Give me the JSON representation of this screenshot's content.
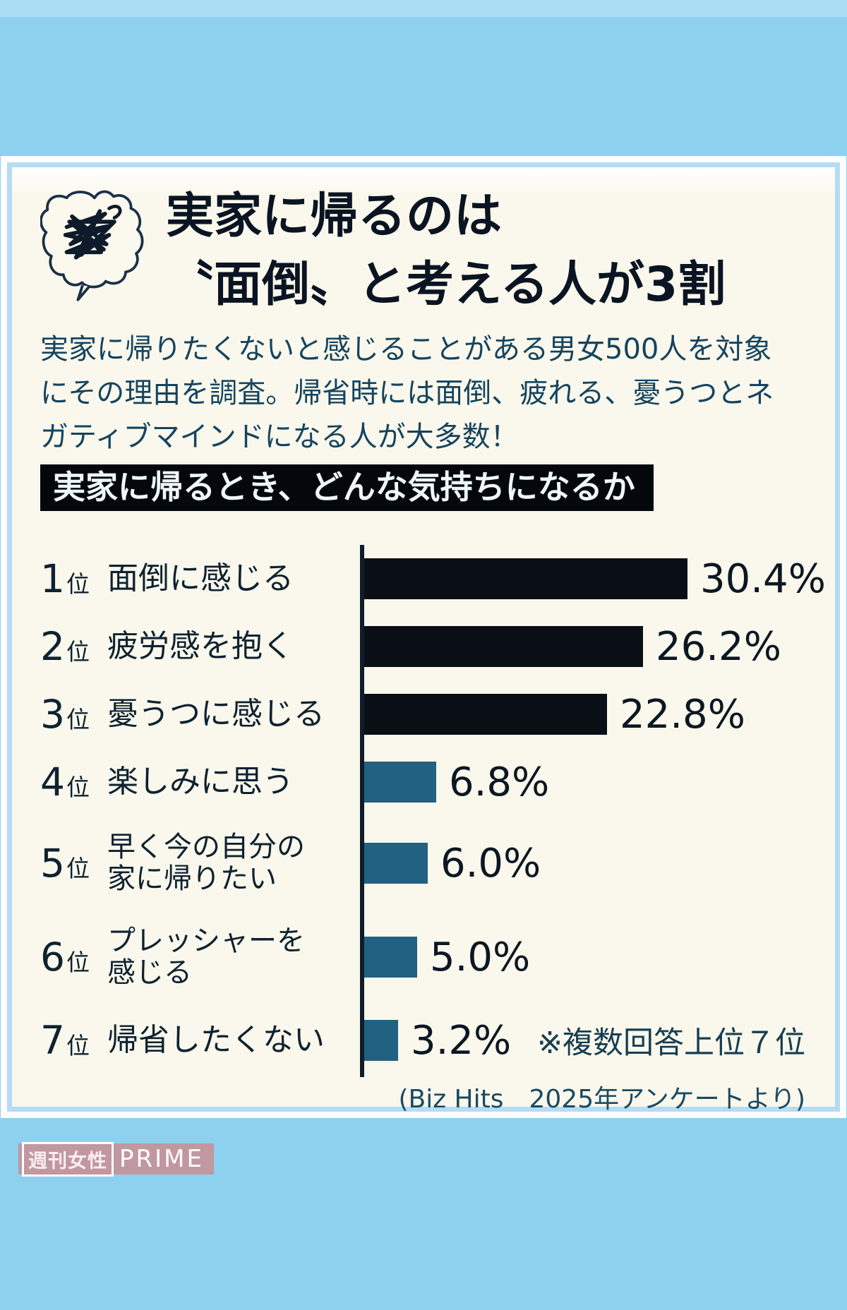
{
  "page": {
    "background": "#8dd1ef",
    "top_strip_color": "#abddf5",
    "card_background": "#faf8ec",
    "card_border_color": "#b5dcf2"
  },
  "header": {
    "icon": "scribble-thought-bubble-icon",
    "title_line1": "実家に帰るのは",
    "title_line2": "〝面倒〟と考える人が3割"
  },
  "intro": {
    "lines": [
      "実家に帰りたくないと感じることがある男女500人を対象",
      "にその理由を調査。帰省時には面倒、疲れる、憂うつとネ",
      "ガティブマインドになる人が大多数！"
    ]
  },
  "section_bar": {
    "label": "実家に帰るとき、どんな気持ちになるか",
    "background": "#04080d",
    "text_color": "#eef6fc"
  },
  "chart_data": {
    "type": "bar",
    "orientation": "horizontal",
    "title": "実家に帰るとき、どんな気持ちになるか",
    "unit": "%",
    "xlim": [
      0,
      42
    ],
    "grid": false,
    "categories": [
      "面倒に感じる",
      "疲労感を抱く",
      "憂うつに感じる",
      "楽しみに思う",
      "早く今の自分の家に帰りたい",
      "プレッシャーを感じる",
      "帰省したくない"
    ],
    "label_lines": [
      [
        "面倒に感じる"
      ],
      [
        "疲労感を抱く"
      ],
      [
        "憂うつに感じる"
      ],
      [
        "楽しみに思う"
      ],
      [
        "早く今の自分の",
        "家に帰りたい"
      ],
      [
        "プレッシャーを",
        "感じる"
      ],
      [
        "帰省したくない"
      ]
    ],
    "rank_numbers": [
      "1",
      "2",
      "3",
      "4",
      "5",
      "6",
      "7"
    ],
    "rank_suffix": "位",
    "values": [
      30.4,
      26.2,
      22.8,
      6.8,
      6.0,
      5.0,
      3.2
    ],
    "value_labels": [
      "30.4%",
      "26.2%",
      "22.8%",
      "6.8%",
      "6.0%",
      "5.0%",
      "3.2%"
    ],
    "bar_colors": [
      "#0a0f15",
      "#0a0f15",
      "#0a0f15",
      "#226181",
      "#226181",
      "#226181",
      "#226181"
    ],
    "axis_color": "#0e1d2b",
    "note": "※複数回答上位７位",
    "source": "(Biz Hits　2025年アンケートより)"
  },
  "footer_logo": {
    "left": "週刊女性",
    "right": "PRIME",
    "background": "#c4939b"
  }
}
